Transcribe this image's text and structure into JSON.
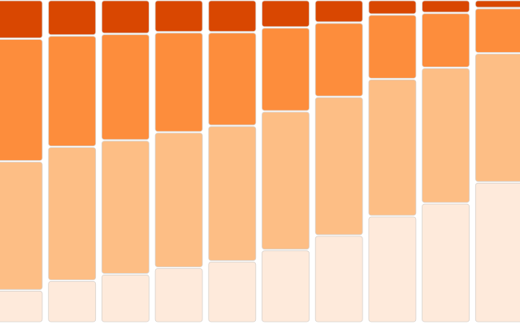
{
  "chart_data": {
    "type": "stacked_bar",
    "ylim": [
      0,
      100
    ],
    "series": [
      {
        "color": "#feeadb",
        "values": [
          10,
          13,
          15,
          17,
          19,
          22.5,
          27,
          33,
          37,
          43.5
        ]
      },
      {
        "color": "#fdbe85",
        "values": [
          40,
          41.5,
          41.5,
          42,
          42,
          43,
          43,
          42.5,
          42,
          40
        ]
      },
      {
        "color": "#fd8d3c",
        "values": [
          38,
          34.5,
          33,
          31,
          29,
          26,
          23,
          20,
          17,
          14
        ]
      },
      {
        "color": "#d94701",
        "values": [
          12,
          11,
          10.5,
          10,
          10,
          8.5,
          7,
          4.5,
          4,
          2.5
        ]
      }
    ]
  }
}
